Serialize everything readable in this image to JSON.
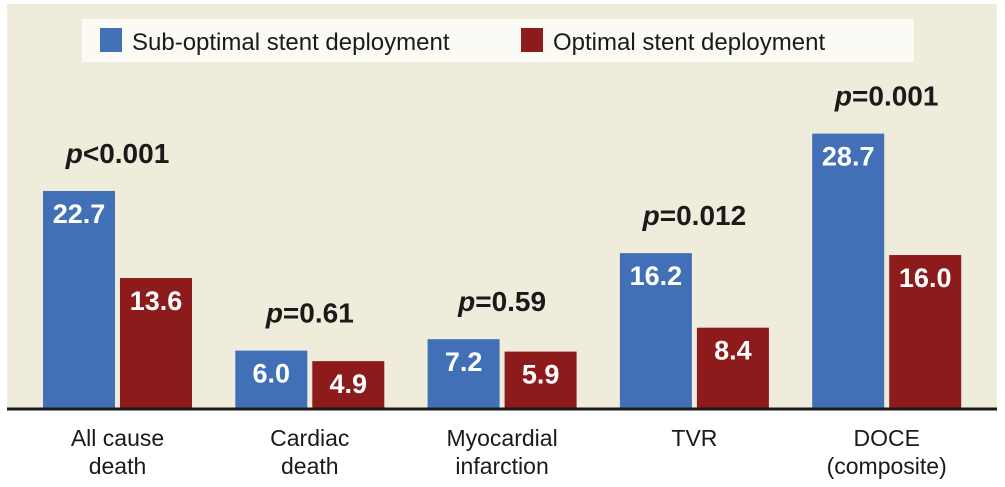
{
  "chart_data": {
    "type": "bar",
    "title": "",
    "xlabel": "",
    "ylabel": "",
    "ylim": [
      0,
      30
    ],
    "grid": false,
    "legend_position": "top",
    "categories": [
      [
        "All cause",
        "death"
      ],
      [
        "Cardiac",
        "death"
      ],
      [
        "Myocardial",
        "infarction"
      ],
      [
        "TVR"
      ],
      [
        "DOCE",
        "(composite)"
      ]
    ],
    "series": [
      {
        "name": "Sub-optimal stent deployment",
        "color": "#4170b6",
        "values": [
          22.7,
          6.0,
          7.2,
          16.2,
          28.7
        ],
        "labels": [
          "22.7",
          "6.0",
          "7.2",
          "16.2",
          "28.7"
        ]
      },
      {
        "name": "Optimal stent deployment",
        "color": "#8e1b1b",
        "values": [
          13.6,
          4.9,
          5.9,
          8.4,
          16.0
        ],
        "labels": [
          "13.6",
          "4.9",
          "5.9",
          "8.4",
          "16.0"
        ]
      }
    ],
    "annotations": [
      {
        "category_index": 0,
        "p_symbol": "p",
        "text": "<0.001"
      },
      {
        "category_index": 1,
        "p_symbol": "p",
        "text": "=0.61"
      },
      {
        "category_index": 2,
        "p_symbol": "p",
        "text": "=0.59"
      },
      {
        "category_index": 3,
        "p_symbol": "p",
        "text": "=0.012"
      },
      {
        "category_index": 4,
        "p_symbol": "p",
        "text": "=0.001"
      }
    ]
  },
  "colors": {
    "background": "#f0ecdc",
    "legend_background": "#fbfaf5",
    "axis": "#1a1a1a"
  }
}
